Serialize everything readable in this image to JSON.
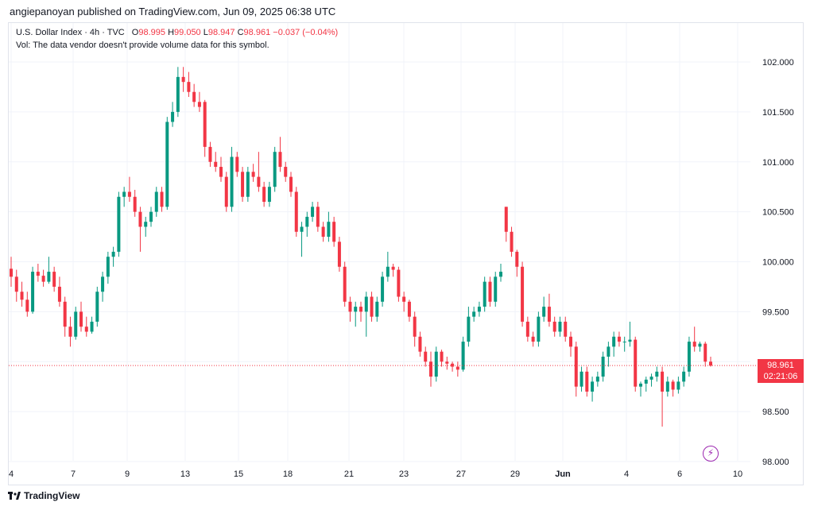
{
  "header": {
    "publisher_line": "angiepanoyan published on TradingView.com, Jun 09, 2025 06:38 UTC"
  },
  "legend": {
    "symbol": "U.S. Dollar Index · 4h · TVC",
    "o_label": "O",
    "o_value": "98.995",
    "h_label": "H",
    "h_value": "99.050",
    "l_label": "L",
    "l_value": "98.947",
    "c_label": "C",
    "c_value": "98.961",
    "change": "−0.037 (−0.04%)",
    "volume_note": "Vol: The data vendor doesn't provide volume data for this symbol."
  },
  "price_tag": {
    "price": "98.961",
    "countdown": "02:21:06"
  },
  "footer": {
    "brand": "TradingView"
  },
  "icons": {
    "lightning": "lightning-icon",
    "logo": "tradingview-logo-icon"
  },
  "colors": {
    "up": "#089981",
    "down": "#f23645",
    "grid": "#f0f3fa",
    "alert": "#9c27b0"
  },
  "chart_data": {
    "type": "candlestick",
    "symbol": "U.S. Dollar Index",
    "interval": "4h",
    "ylim": [
      98.0,
      102.2
    ],
    "y_ticks": [
      "102.000",
      "101.500",
      "101.000",
      "100.500",
      "100.000",
      "99.500",
      "99.000",
      "98.500",
      "98.000"
    ],
    "x_ticks": [
      "4",
      "7",
      "9",
      "13",
      "15",
      "18",
      "21",
      "23",
      "27",
      "29",
      "Jun",
      "4",
      "6",
      "10"
    ],
    "last_price": 98.961,
    "candles": [
      {
        "o": 99.93,
        "h": 100.05,
        "l": 99.75,
        "c": 99.85
      },
      {
        "o": 99.85,
        "h": 99.92,
        "l": 99.6,
        "c": 99.7
      },
      {
        "o": 99.7,
        "h": 99.8,
        "l": 99.55,
        "c": 99.62
      },
      {
        "o": 99.62,
        "h": 99.7,
        "l": 99.45,
        "c": 99.5
      },
      {
        "o": 99.5,
        "h": 99.95,
        "l": 99.48,
        "c": 99.9
      },
      {
        "o": 99.9,
        "h": 99.98,
        "l": 99.8,
        "c": 99.86
      },
      {
        "o": 99.86,
        "h": 99.92,
        "l": 99.75,
        "c": 99.8
      },
      {
        "o": 99.8,
        "h": 100.05,
        "l": 99.78,
        "c": 99.9
      },
      {
        "o": 99.9,
        "h": 99.95,
        "l": 99.7,
        "c": 99.75
      },
      {
        "o": 99.75,
        "h": 99.85,
        "l": 99.55,
        "c": 99.6
      },
      {
        "o": 99.6,
        "h": 99.65,
        "l": 99.25,
        "c": 99.35
      },
      {
        "o": 99.35,
        "h": 99.45,
        "l": 99.15,
        "c": 99.25
      },
      {
        "o": 99.25,
        "h": 99.55,
        "l": 99.22,
        "c": 99.5
      },
      {
        "o": 99.5,
        "h": 99.6,
        "l": 99.3,
        "c": 99.35
      },
      {
        "o": 99.35,
        "h": 99.45,
        "l": 99.25,
        "c": 99.3
      },
      {
        "o": 99.3,
        "h": 99.45,
        "l": 99.28,
        "c": 99.4
      },
      {
        "o": 99.4,
        "h": 99.75,
        "l": 99.35,
        "c": 99.7
      },
      {
        "o": 99.7,
        "h": 99.9,
        "l": 99.6,
        "c": 99.85
      },
      {
        "o": 99.85,
        "h": 100.1,
        "l": 99.78,
        "c": 100.05
      },
      {
        "o": 100.05,
        "h": 100.15,
        "l": 99.95,
        "c": 100.1
      },
      {
        "o": 100.1,
        "h": 100.7,
        "l": 100.05,
        "c": 100.65
      },
      {
        "o": 100.65,
        "h": 100.75,
        "l": 100.55,
        "c": 100.7
      },
      {
        "o": 100.7,
        "h": 100.85,
        "l": 100.6,
        "c": 100.65
      },
      {
        "o": 100.65,
        "h": 100.72,
        "l": 100.45,
        "c": 100.5
      },
      {
        "o": 100.5,
        "h": 100.55,
        "l": 100.1,
        "c": 100.35
      },
      {
        "o": 100.35,
        "h": 100.45,
        "l": 100.25,
        "c": 100.4
      },
      {
        "o": 100.4,
        "h": 100.55,
        "l": 100.35,
        "c": 100.5
      },
      {
        "o": 100.5,
        "h": 100.75,
        "l": 100.45,
        "c": 100.7
      },
      {
        "o": 100.7,
        "h": 100.75,
        "l": 100.5,
        "c": 100.55
      },
      {
        "o": 100.55,
        "h": 101.45,
        "l": 100.52,
        "c": 101.4
      },
      {
        "o": 101.4,
        "h": 101.6,
        "l": 101.35,
        "c": 101.5
      },
      {
        "o": 101.5,
        "h": 101.95,
        "l": 101.45,
        "c": 101.85
      },
      {
        "o": 101.85,
        "h": 101.95,
        "l": 101.7,
        "c": 101.8
      },
      {
        "o": 101.8,
        "h": 101.9,
        "l": 101.65,
        "c": 101.7
      },
      {
        "o": 101.7,
        "h": 101.78,
        "l": 101.55,
        "c": 101.6
      },
      {
        "o": 101.6,
        "h": 101.7,
        "l": 101.5,
        "c": 101.55
      },
      {
        "o": 101.6,
        "h": 101.62,
        "l": 101.05,
        "c": 101.15
      },
      {
        "o": 101.15,
        "h": 101.2,
        "l": 100.95,
        "c": 101.0
      },
      {
        "o": 101.0,
        "h": 101.1,
        "l": 100.9,
        "c": 100.95
      },
      {
        "o": 100.95,
        "h": 101.05,
        "l": 100.8,
        "c": 100.85
      },
      {
        "o": 100.85,
        "h": 100.9,
        "l": 100.5,
        "c": 100.55
      },
      {
        "o": 100.55,
        "h": 101.15,
        "l": 100.5,
        "c": 101.05
      },
      {
        "o": 101.05,
        "h": 101.1,
        "l": 100.85,
        "c": 100.9
      },
      {
        "o": 100.9,
        "h": 100.95,
        "l": 100.6,
        "c": 100.65
      },
      {
        "o": 100.65,
        "h": 100.95,
        "l": 100.6,
        "c": 100.9
      },
      {
        "o": 100.9,
        "h": 100.98,
        "l": 100.8,
        "c": 100.85
      },
      {
        "o": 100.85,
        "h": 101.1,
        "l": 100.7,
        "c": 100.75
      },
      {
        "o": 100.75,
        "h": 100.8,
        "l": 100.55,
        "c": 100.6
      },
      {
        "o": 100.6,
        "h": 100.8,
        "l": 100.55,
        "c": 100.75
      },
      {
        "o": 100.75,
        "h": 101.15,
        "l": 100.7,
        "c": 101.1
      },
      {
        "o": 101.1,
        "h": 101.25,
        "l": 100.9,
        "c": 100.95
      },
      {
        "o": 100.95,
        "h": 101.0,
        "l": 100.8,
        "c": 100.85
      },
      {
        "o": 100.85,
        "h": 100.9,
        "l": 100.65,
        "c": 100.7
      },
      {
        "o": 100.7,
        "h": 100.75,
        "l": 100.25,
        "c": 100.3
      },
      {
        "o": 100.3,
        "h": 100.4,
        "l": 100.05,
        "c": 100.35
      },
      {
        "o": 100.35,
        "h": 100.5,
        "l": 100.25,
        "c": 100.45
      },
      {
        "o": 100.45,
        "h": 100.6,
        "l": 100.4,
        "c": 100.55
      },
      {
        "o": 100.55,
        "h": 100.6,
        "l": 100.3,
        "c": 100.35
      },
      {
        "o": 100.35,
        "h": 100.4,
        "l": 100.2,
        "c": 100.25
      },
      {
        "o": 100.25,
        "h": 100.5,
        "l": 100.2,
        "c": 100.4
      },
      {
        "o": 100.4,
        "h": 100.45,
        "l": 100.15,
        "c": 100.2
      },
      {
        "o": 100.2,
        "h": 100.25,
        "l": 99.9,
        "c": 99.95
      },
      {
        "o": 99.95,
        "h": 100.0,
        "l": 99.55,
        "c": 99.6
      },
      {
        "o": 99.6,
        "h": 99.65,
        "l": 99.4,
        "c": 99.5
      },
      {
        "o": 99.5,
        "h": 99.6,
        "l": 99.35,
        "c": 99.55
      },
      {
        "o": 99.55,
        "h": 99.6,
        "l": 99.4,
        "c": 99.5
      },
      {
        "o": 99.5,
        "h": 99.7,
        "l": 99.25,
        "c": 99.65
      },
      {
        "o": 99.65,
        "h": 99.7,
        "l": 99.4,
        "c": 99.45
      },
      {
        "o": 99.45,
        "h": 99.65,
        "l": 99.4,
        "c": 99.6
      },
      {
        "o": 99.6,
        "h": 99.9,
        "l": 99.55,
        "c": 99.85
      },
      {
        "o": 99.85,
        "h": 100.1,
        "l": 99.8,
        "c": 99.95
      },
      {
        "o": 99.95,
        "h": 99.98,
        "l": 99.85,
        "c": 99.92
      },
      {
        "o": 99.92,
        "h": 99.95,
        "l": 99.6,
        "c": 99.65
      },
      {
        "o": 99.65,
        "h": 99.7,
        "l": 99.5,
        "c": 99.6
      },
      {
        "o": 99.6,
        "h": 99.62,
        "l": 99.4,
        "c": 99.45
      },
      {
        "o": 99.45,
        "h": 99.5,
        "l": 99.15,
        "c": 99.25
      },
      {
        "o": 99.25,
        "h": 99.3,
        "l": 99.05,
        "c": 99.1
      },
      {
        "o": 99.1,
        "h": 99.15,
        "l": 98.95,
        "c": 99.0
      },
      {
        "o": 99.0,
        "h": 99.1,
        "l": 98.75,
        "c": 98.85
      },
      {
        "o": 98.85,
        "h": 99.15,
        "l": 98.8,
        "c": 99.1
      },
      {
        "o": 99.1,
        "h": 99.12,
        "l": 98.95,
        "c": 99.0
      },
      {
        "o": 99.0,
        "h": 99.05,
        "l": 98.92,
        "c": 98.98
      },
      {
        "o": 98.98,
        "h": 99.0,
        "l": 98.9,
        "c": 98.95
      },
      {
        "o": 98.95,
        "h": 99.0,
        "l": 98.85,
        "c": 98.92
      },
      {
        "o": 98.92,
        "h": 99.25,
        "l": 98.9,
        "c": 99.2
      },
      {
        "o": 99.2,
        "h": 99.55,
        "l": 99.15,
        "c": 99.45
      },
      {
        "o": 99.45,
        "h": 99.55,
        "l": 99.4,
        "c": 99.5
      },
      {
        "o": 99.5,
        "h": 99.6,
        "l": 99.45,
        "c": 99.55
      },
      {
        "o": 99.55,
        "h": 99.85,
        "l": 99.5,
        "c": 99.8
      },
      {
        "o": 99.8,
        "h": 99.85,
        "l": 99.55,
        "c": 99.6
      },
      {
        "o": 99.6,
        "h": 99.9,
        "l": 99.55,
        "c": 99.85
      },
      {
        "o": 99.85,
        "h": 99.98,
        "l": 99.8,
        "c": 99.9
      },
      {
        "o": 100.55,
        "h": 100.55,
        "l": 100.2,
        "c": 100.3
      },
      {
        "o": 100.3,
        "h": 100.35,
        "l": 100.05,
        "c": 100.1
      },
      {
        "o": 100.1,
        "h": 100.12,
        "l": 99.85,
        "c": 99.95
      },
      {
        "o": 99.95,
        "h": 100.0,
        "l": 99.35,
        "c": 99.4
      },
      {
        "o": 99.4,
        "h": 99.45,
        "l": 99.2,
        "c": 99.25
      },
      {
        "o": 99.25,
        "h": 99.3,
        "l": 99.15,
        "c": 99.2
      },
      {
        "o": 99.2,
        "h": 99.5,
        "l": 99.15,
        "c": 99.45
      },
      {
        "o": 99.45,
        "h": 99.65,
        "l": 99.4,
        "c": 99.55
      },
      {
        "o": 99.55,
        "h": 99.68,
        "l": 99.35,
        "c": 99.4
      },
      {
        "o": 99.4,
        "h": 99.45,
        "l": 99.25,
        "c": 99.3
      },
      {
        "o": 99.3,
        "h": 99.45,
        "l": 99.25,
        "c": 99.4
      },
      {
        "o": 99.4,
        "h": 99.45,
        "l": 99.2,
        "c": 99.25
      },
      {
        "o": 99.25,
        "h": 99.3,
        "l": 99.05,
        "c": 99.15
      },
      {
        "o": 99.15,
        "h": 99.2,
        "l": 98.65,
        "c": 98.75
      },
      {
        "o": 98.75,
        "h": 98.95,
        "l": 98.7,
        "c": 98.9
      },
      {
        "o": 98.9,
        "h": 98.95,
        "l": 98.65,
        "c": 98.7
      },
      {
        "o": 98.7,
        "h": 98.85,
        "l": 98.6,
        "c": 98.8
      },
      {
        "o": 98.8,
        "h": 98.9,
        "l": 98.75,
        "c": 98.85
      },
      {
        "o": 98.85,
        "h": 99.1,
        "l": 98.8,
        "c": 99.05
      },
      {
        "o": 99.05,
        "h": 99.2,
        "l": 98.95,
        "c": 99.15
      },
      {
        "o": 99.15,
        "h": 99.3,
        "l": 99.05,
        "c": 99.25
      },
      {
        "o": 99.25,
        "h": 99.3,
        "l": 99.15,
        "c": 99.2
      },
      {
        "o": 99.2,
        "h": 99.25,
        "l": 99.1,
        "c": 99.2
      },
      {
        "o": 99.2,
        "h": 99.4,
        "l": 99.15,
        "c": 99.22
      },
      {
        "o": 99.22,
        "h": 99.25,
        "l": 98.7,
        "c": 98.75
      },
      {
        "o": 98.75,
        "h": 98.8,
        "l": 98.65,
        "c": 98.78
      },
      {
        "o": 98.78,
        "h": 98.85,
        "l": 98.7,
        "c": 98.82
      },
      {
        "o": 98.82,
        "h": 98.88,
        "l": 98.75,
        "c": 98.85
      },
      {
        "o": 98.85,
        "h": 98.95,
        "l": 98.8,
        "c": 98.9
      },
      {
        "o": 98.9,
        "h": 98.95,
        "l": 98.35,
        "c": 98.7
      },
      {
        "o": 98.7,
        "h": 98.85,
        "l": 98.65,
        "c": 98.8
      },
      {
        "o": 98.8,
        "h": 98.82,
        "l": 98.65,
        "c": 98.72
      },
      {
        "o": 98.72,
        "h": 98.85,
        "l": 98.68,
        "c": 98.8
      },
      {
        "o": 98.8,
        "h": 98.95,
        "l": 98.75,
        "c": 98.9
      },
      {
        "o": 98.9,
        "h": 99.25,
        "l": 98.85,
        "c": 99.2
      },
      {
        "o": 99.2,
        "h": 99.35,
        "l": 99.1,
        "c": 99.15
      },
      {
        "o": 99.15,
        "h": 99.2,
        "l": 99.1,
        "c": 99.18
      },
      {
        "o": 99.18,
        "h": 99.2,
        "l": 98.95,
        "c": 99.0
      },
      {
        "o": 99.0,
        "h": 99.05,
        "l": 98.95,
        "c": 98.96
      }
    ]
  }
}
